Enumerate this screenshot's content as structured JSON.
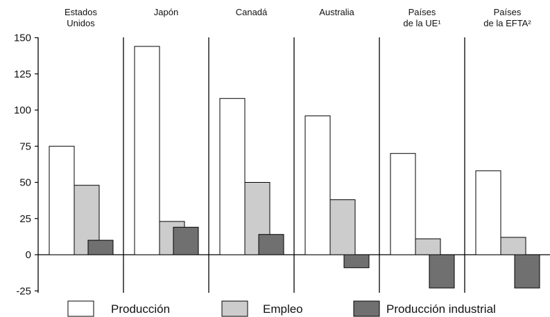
{
  "chart_data": {
    "type": "bar",
    "categories": [
      [
        "Estados",
        "Unidos"
      ],
      [
        "Japón"
      ],
      [
        "Canadá"
      ],
      [
        "Australia"
      ],
      [
        "Países",
        "de la UE¹"
      ],
      [
        "Países",
        "de la EFTA²"
      ]
    ],
    "series": [
      {
        "name": "Producción",
        "color": "#ffffff",
        "values": [
          75,
          144,
          108,
          96,
          70,
          58
        ]
      },
      {
        "name": "Empleo",
        "color": "#cccccc",
        "values": [
          48,
          23,
          50,
          38,
          11,
          12
        ]
      },
      {
        "name": "Producción industrial",
        "color": "#707070",
        "values": [
          10,
          19,
          14,
          -9,
          -23,
          -23
        ]
      }
    ],
    "ylim": [
      -25,
      150
    ],
    "yticks": [
      150,
      125,
      100,
      75,
      50,
      25,
      0,
      -25
    ],
    "legend_position": "bottom"
  }
}
